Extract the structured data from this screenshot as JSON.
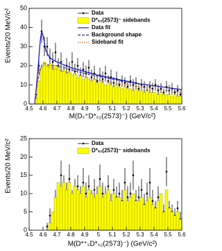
{
  "chart_data": [
    {
      "type": "line",
      "xlabel": "M(Dₛ⁺D*ₛ₂(2573)⁻) (GeV/c²)",
      "ylabel": "Events/20 MeV/c²",
      "xlim": [
        4.5,
        5.6
      ],
      "xticks": [
        4.5,
        4.6,
        4.7,
        4.8,
        4.9,
        5,
        5.1,
        5.2,
        5.3,
        5.4,
        5.5,
        5.6
      ],
      "ylim": [
        0,
        50
      ],
      "yticks": [
        0,
        10,
        20,
        30,
        40,
        50
      ],
      "legend": "upper right",
      "x": [
        4.55,
        4.57,
        4.59,
        4.61,
        4.63,
        4.65,
        4.67,
        4.69,
        4.71,
        4.73,
        4.75,
        4.77,
        4.79,
        4.81,
        4.83,
        4.85,
        4.87,
        4.89,
        4.91,
        4.93,
        4.95,
        4.97,
        4.99,
        5.01,
        5.03,
        5.05,
        5.07,
        5.09,
        5.11,
        5.13,
        5.15,
        5.17,
        5.19,
        5.21,
        5.23,
        5.25,
        5.27,
        5.29,
        5.31,
        5.33,
        5.35,
        5.37,
        5.39,
        5.41,
        5.43,
        5.45,
        5.47,
        5.49,
        5.51,
        5.53,
        5.55,
        5.57,
        5.59
      ],
      "series": [
        {
          "name": "Data",
          "style": "points",
          "color": "#000000",
          "values": [
            5,
            20,
            38,
            30,
            30,
            24,
            22,
            27,
            20,
            22,
            16,
            20,
            18,
            22,
            17,
            20,
            15,
            18,
            16,
            19,
            14,
            16,
            12,
            15,
            13,
            16,
            12,
            14,
            11,
            13,
            10,
            12,
            11,
            9,
            12,
            10,
            11,
            8,
            10,
            9,
            7,
            9,
            8,
            10,
            7,
            8,
            6,
            9,
            7,
            8,
            6,
            7,
            5
          ],
          "errors": [
            2,
            4,
            6,
            5,
            5,
            5,
            5,
            5,
            4,
            5,
            4,
            4,
            4,
            5,
            4,
            4,
            4,
            4,
            4,
            4,
            4,
            4,
            3,
            4,
            4,
            4,
            3,
            4,
            3,
            4,
            3,
            3,
            3,
            3,
            3,
            3,
            3,
            3,
            3,
            3,
            3,
            3,
            3,
            3,
            3,
            3,
            2,
            3,
            3,
            3,
            2,
            3,
            2
          ]
        },
        {
          "name": "D*ₛ₂(2573)⁻ sidebands",
          "style": "hist",
          "color": "#ffff00",
          "values": [
            3,
            12,
            19,
            22,
            20,
            21,
            18,
            20,
            19,
            17,
            18,
            16,
            17,
            15,
            16,
            14,
            15,
            13,
            14,
            13,
            12,
            13,
            11,
            12,
            11,
            10,
            11,
            10,
            9,
            10,
            9,
            8,
            9,
            8,
            8,
            7,
            8,
            7,
            7,
            6,
            7,
            6,
            6,
            6,
            5,
            6,
            5,
            5,
            5,
            4,
            5,
            4,
            4
          ]
        },
        {
          "name": "Data fit",
          "style": "line",
          "color": "#1a1ad0",
          "x": [
            4.54,
            4.56,
            4.58,
            4.59,
            4.6,
            4.62,
            4.65,
            4.7,
            4.8,
            4.9,
            5.0,
            5.1,
            5.2,
            5.3,
            5.4,
            5.5,
            5.6
          ],
          "values": [
            0,
            15,
            33,
            38,
            36,
            28,
            24,
            22,
            19,
            17,
            15,
            13.5,
            12,
            10.5,
            9.5,
            8.5,
            7.5
          ]
        },
        {
          "name": "Background shape",
          "style": "dashed",
          "color": "#2a2a80",
          "x": [
            4.54,
            4.56,
            4.58,
            4.59,
            4.6,
            4.62,
            4.65,
            4.7,
            4.8,
            4.9,
            5.0,
            5.1,
            5.2,
            5.3,
            5.4,
            5.5,
            5.6
          ],
          "values": [
            0,
            12,
            18,
            20,
            21,
            21,
            20,
            20,
            18,
            16,
            14.5,
            13,
            11.5,
            10.5,
            9.5,
            8.5,
            7.5
          ]
        },
        {
          "name": "Sideband fit",
          "style": "dotted",
          "color": "#d06020",
          "x": [
            4.54,
            4.56,
            4.58,
            4.59,
            4.6,
            4.62,
            4.65,
            4.7,
            4.8,
            4.9,
            5.0,
            5.1,
            5.2,
            5.3,
            5.4,
            5.5,
            5.6
          ],
          "values": [
            0,
            11,
            17,
            19,
            20,
            20,
            19,
            18,
            16,
            14,
            12.5,
            11,
            10,
            9,
            8,
            7,
            6
          ]
        }
      ]
    },
    {
      "type": "line",
      "xlabel": "M(D*⁺ₛD*ₛ₂(2573)⁻) (GeV/c²)",
      "ylabel": "Events/20 MeV/c²",
      "xlim": [
        4.5,
        5.6
      ],
      "xticks": [
        4.5,
        4.6,
        4.7,
        4.8,
        4.9,
        5,
        5.1,
        5.2,
        5.3,
        5.4,
        5.5,
        5.6
      ],
      "ylim": [
        0,
        25
      ],
      "yticks": [
        0,
        5,
        10,
        15,
        20,
        25
      ],
      "legend": "upper right",
      "x": [
        4.63,
        4.65,
        4.67,
        4.69,
        4.71,
        4.73,
        4.75,
        4.77,
        4.79,
        4.81,
        4.83,
        4.85,
        4.87,
        4.89,
        4.91,
        4.93,
        4.95,
        4.97,
        4.99,
        5.01,
        5.03,
        5.05,
        5.07,
        5.09,
        5.11,
        5.13,
        5.15,
        5.17,
        5.19,
        5.21,
        5.23,
        5.25,
        5.27,
        5.29,
        5.31,
        5.33,
        5.35,
        5.37,
        5.39,
        5.41,
        5.43,
        5.45,
        5.47,
        5.49,
        5.51,
        5.53,
        5.55,
        5.57,
        5.59
      ],
      "series": [
        {
          "name": "Data",
          "style": "points",
          "color": "#000000",
          "values": [
            1,
            4,
            2,
            8,
            6,
            15,
            12,
            10,
            14,
            8,
            11,
            12,
            9,
            13,
            10,
            12,
            8,
            11,
            9,
            14,
            10,
            9,
            12,
            7,
            11,
            9,
            10,
            8,
            13,
            9,
            10,
            15,
            8,
            9,
            11,
            7,
            10,
            13,
            8,
            6,
            9,
            7,
            5,
            16,
            6,
            5,
            4,
            6,
            3
          ],
          "errors": [
            1,
            2,
            1,
            3,
            2,
            4,
            3,
            3,
            4,
            3,
            3,
            3,
            3,
            4,
            3,
            3,
            3,
            3,
            3,
            4,
            3,
            3,
            3,
            3,
            3,
            3,
            3,
            3,
            4,
            3,
            3,
            4,
            3,
            3,
            3,
            3,
            3,
            4,
            3,
            2,
            3,
            3,
            2,
            4,
            2,
            2,
            2,
            2,
            2
          ]
        },
        {
          "name": "D*ₛ₂(2573)⁻ sidebands",
          "style": "hist",
          "color": "#ffff00",
          "values": [
            0,
            2,
            5,
            9,
            13,
            12,
            13,
            11,
            13,
            10,
            12,
            11,
            10,
            12,
            9,
            11,
            10,
            9,
            10,
            12,
            9,
            10,
            11,
            8,
            10,
            9,
            9,
            8,
            11,
            8,
            9,
            10,
            8,
            8,
            9,
            7,
            8,
            9,
            7,
            6,
            8,
            10,
            5,
            11,
            6,
            5,
            4,
            5,
            3
          ]
        }
      ]
    }
  ]
}
